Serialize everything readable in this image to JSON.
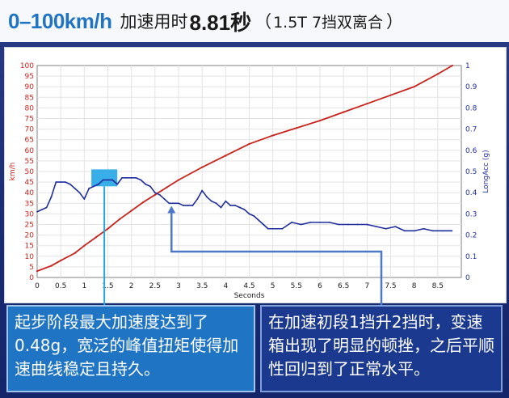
{
  "title": {
    "accel_label": "0–100km/h",
    "text_a": "加速用时",
    "time_value": "8.81秒",
    "paren_open": "（",
    "transmission": "1.5T 7挡双离合",
    "paren_close": "）"
  },
  "annotations": {
    "left": "起步阶段最大加速度达到了0.48g，宽泛的峰值扭矩使得加速曲线稳定且持久。",
    "right": "在加速初段1挡升2挡时，变速箱出现了明显的顿挫，之后平顺性回归到了正常水平。"
  },
  "colors": {
    "speed_line": "#c8231c",
    "accel_line": "#1e2c9c",
    "highlight": "#22a6e6",
    "callout_line_left": "#22a6e6",
    "callout_line_right": "#4c78c8"
  },
  "chart_data": {
    "type": "line",
    "xlabel": "Seconds",
    "ylabel_left": "km/h",
    "ylabel_right": "LongAcc (g)",
    "xlim": [
      0,
      9
    ],
    "ylim_left": [
      0,
      100
    ],
    "ylim_right": [
      0,
      1
    ],
    "x_ticks": [
      "0",
      "0.5",
      "1",
      "1.5",
      "2",
      "2.5",
      "3",
      "3.5",
      "4",
      "4.5",
      "5",
      "5.5",
      "6",
      "6.5",
      "7",
      "7.5",
      "8",
      "8.5"
    ],
    "y_left_ticks": [
      "0",
      "5",
      "10",
      "15",
      "20",
      "25",
      "30",
      "35",
      "40",
      "45",
      "50",
      "55",
      "60",
      "65",
      "70",
      "75",
      "80",
      "85",
      "90",
      "95",
      "100"
    ],
    "y_right_ticks": [
      "0",
      "0.1",
      "0.2",
      "0.3",
      "0.4",
      "0.5",
      "0.6",
      "0.7",
      "0.8",
      "0.9",
      "1"
    ],
    "grid": true,
    "series": [
      {
        "name": "km/h",
        "axis": "left",
        "x": [
          0.0,
          0.3,
          0.5,
          0.8,
          1.0,
          1.25,
          1.5,
          1.75,
          2.0,
          2.25,
          2.5,
          2.75,
          3.0,
          3.5,
          4.0,
          4.5,
          5.0,
          5.5,
          6.0,
          6.5,
          7.0,
          7.5,
          8.0,
          8.5,
          8.81
        ],
        "y": [
          3,
          5.5,
          8,
          11.5,
          15,
          19,
          23,
          27.5,
          31.5,
          35.5,
          39,
          42.5,
          46,
          52,
          57.5,
          63,
          67,
          70.5,
          74,
          78,
          82,
          86,
          90,
          96,
          100
        ]
      },
      {
        "name": "LongAcc (g)",
        "axis": "right",
        "x": [
          0.0,
          0.1,
          0.2,
          0.3,
          0.4,
          0.5,
          0.6,
          0.7,
          0.8,
          0.9,
          1.0,
          1.1,
          1.2,
          1.3,
          1.4,
          1.5,
          1.6,
          1.7,
          1.8,
          1.9,
          2.0,
          2.1,
          2.2,
          2.3,
          2.4,
          2.5,
          2.6,
          2.7,
          2.8,
          2.9,
          3.0,
          3.1,
          3.2,
          3.3,
          3.4,
          3.5,
          3.6,
          3.7,
          3.8,
          3.9,
          4.0,
          4.1,
          4.2,
          4.3,
          4.4,
          4.5,
          4.6,
          4.7,
          4.8,
          4.9,
          5.0,
          5.2,
          5.4,
          5.6,
          5.8,
          6.0,
          6.2,
          6.4,
          6.6,
          6.8,
          7.0,
          7.2,
          7.4,
          7.6,
          7.8,
          8.0,
          8.2,
          8.4,
          8.6,
          8.8
        ],
        "y": [
          0.31,
          0.32,
          0.33,
          0.38,
          0.45,
          0.45,
          0.45,
          0.44,
          0.42,
          0.4,
          0.37,
          0.42,
          0.43,
          0.44,
          0.46,
          0.46,
          0.46,
          0.44,
          0.47,
          0.47,
          0.47,
          0.47,
          0.46,
          0.44,
          0.43,
          0.4,
          0.39,
          0.37,
          0.35,
          0.35,
          0.35,
          0.34,
          0.34,
          0.34,
          0.37,
          0.41,
          0.38,
          0.36,
          0.35,
          0.33,
          0.36,
          0.34,
          0.34,
          0.33,
          0.32,
          0.3,
          0.29,
          0.27,
          0.25,
          0.23,
          0.23,
          0.23,
          0.26,
          0.25,
          0.26,
          0.26,
          0.26,
          0.25,
          0.25,
          0.25,
          0.25,
          0.24,
          0.23,
          0.24,
          0.22,
          0.22,
          0.23,
          0.22,
          0.22,
          0.22
        ]
      }
    ]
  }
}
